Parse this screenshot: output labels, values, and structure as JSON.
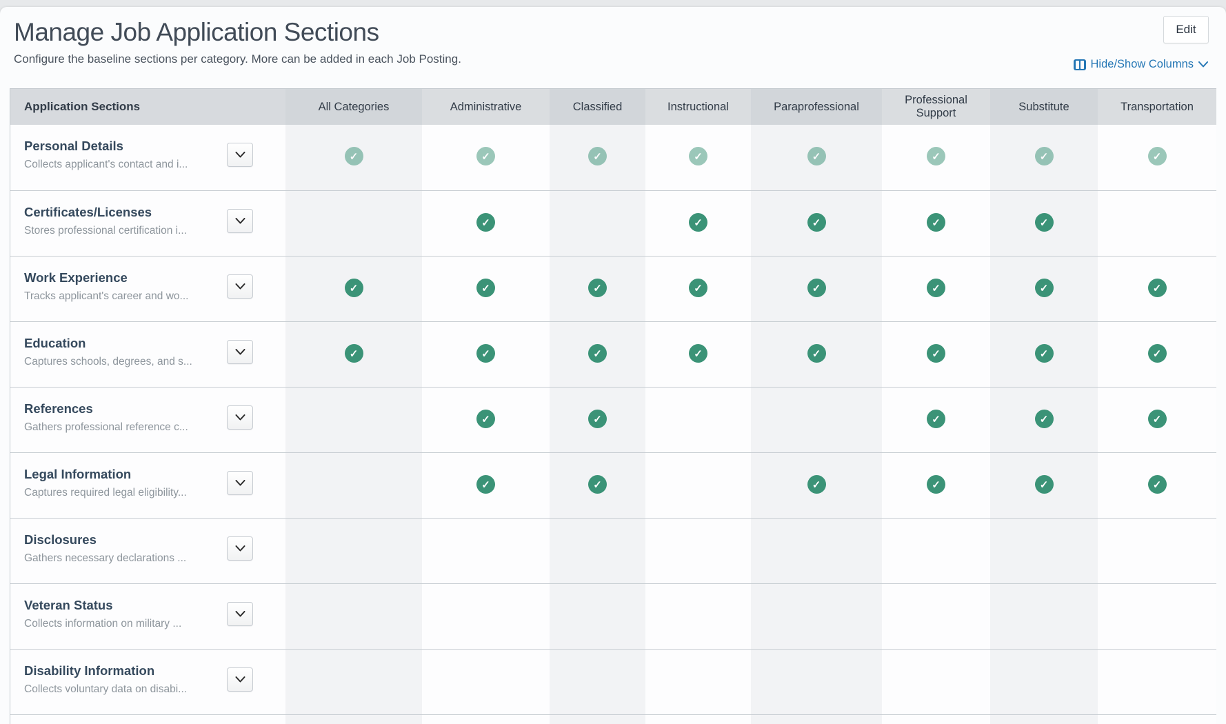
{
  "page": {
    "title": "Manage Job Application Sections",
    "subtitle": "Configure the baseline sections per category. More can be added in each Job Posting.",
    "edit_button": "Edit",
    "hide_show_columns": "Hide/Show Columns"
  },
  "colors": {
    "accent_link": "#2577b5",
    "check_green": "#3b9377",
    "check_green_muted": "#92c4ae",
    "header_bg": "#dadde0",
    "header_bg_dark": "#d2d6da",
    "stripe_bg": "#f2f3f5"
  },
  "table": {
    "columns": [
      "Application Sections",
      "All Categories",
      "Administrative",
      "Classified",
      "Instructional",
      "Paraprofessional",
      "Professional Support",
      "Substitute",
      "Transportation"
    ],
    "rows": [
      {
        "title": "Personal Details",
        "description": "Collects applicant's contact and i...",
        "muted": true,
        "checks": [
          1,
          1,
          1,
          1,
          1,
          1,
          1,
          1
        ]
      },
      {
        "title": "Certificates/Licenses",
        "description": "Stores professional certification i...",
        "muted": false,
        "checks": [
          0,
          1,
          0,
          1,
          1,
          1,
          1,
          0
        ]
      },
      {
        "title": "Work Experience",
        "description": "Tracks applicant's career and wo...",
        "muted": false,
        "checks": [
          1,
          1,
          1,
          1,
          1,
          1,
          1,
          1
        ]
      },
      {
        "title": "Education",
        "description": "Captures schools, degrees, and s...",
        "muted": false,
        "checks": [
          1,
          1,
          1,
          1,
          1,
          1,
          1,
          1
        ]
      },
      {
        "title": "References",
        "description": "Gathers professional reference c...",
        "muted": false,
        "checks": [
          0,
          1,
          1,
          0,
          0,
          1,
          1,
          1
        ]
      },
      {
        "title": "Legal Information",
        "description": "Captures required legal eligibility...",
        "muted": false,
        "checks": [
          0,
          1,
          1,
          0,
          1,
          1,
          1,
          1
        ]
      },
      {
        "title": "Disclosures",
        "description": "Gathers necessary declarations ...",
        "muted": false,
        "checks": [
          0,
          0,
          0,
          0,
          0,
          0,
          0,
          0
        ]
      },
      {
        "title": "Veteran Status",
        "description": "Collects information on military ...",
        "muted": false,
        "checks": [
          0,
          0,
          0,
          0,
          0,
          0,
          0,
          0
        ]
      },
      {
        "title": "Disability Information",
        "description": "Collects voluntary data on disabi...",
        "muted": false,
        "checks": [
          0,
          0,
          0,
          0,
          0,
          0,
          0,
          0
        ]
      }
    ]
  }
}
